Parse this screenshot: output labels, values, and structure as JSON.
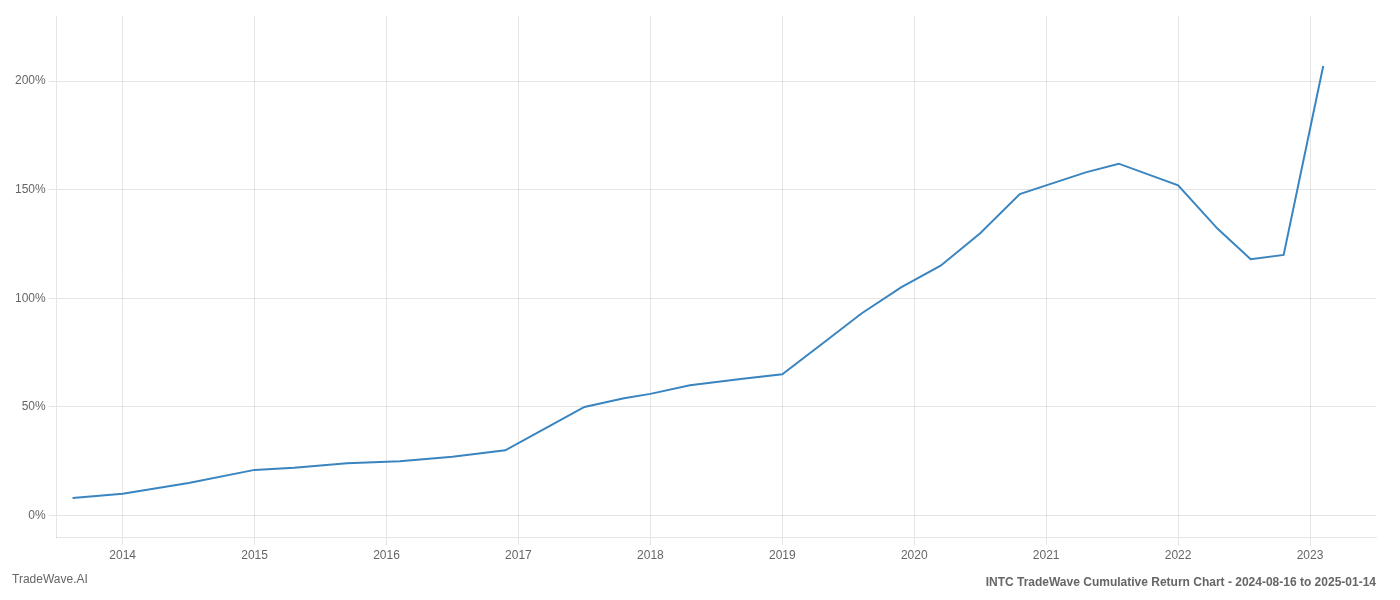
{
  "chart_data": {
    "type": "line",
    "title": "INTC TradeWave Cumulative Return Chart - 2024-08-16 to 2025-01-14",
    "annotations": [
      "TradeWave.AI"
    ],
    "x": [
      2013.62,
      2014.0,
      2014.5,
      2015.0,
      2015.3,
      2015.7,
      2016.1,
      2016.5,
      2016.9,
      2017.2,
      2017.5,
      2017.8,
      2018.0,
      2018.3,
      2018.7,
      2019.0,
      2019.3,
      2019.6,
      2019.9,
      2020.2,
      2020.5,
      2020.8,
      2021.0,
      2021.3,
      2021.55,
      2022.0,
      2022.3,
      2022.55,
      2022.8,
      2023.1
    ],
    "values": [
      8,
      10,
      15,
      21,
      22,
      24,
      25,
      27,
      30,
      40,
      50,
      54,
      56,
      60,
      63,
      65,
      79,
      93,
      105,
      115,
      130,
      148,
      152,
      158,
      162,
      152,
      132,
      118,
      120,
      207
    ],
    "color": "#3a85c0",
    "xlim": [
      2013.5,
      2023.5
    ],
    "xticks": [
      2014,
      2015,
      2016,
      2017,
      2018,
      2019,
      2020,
      2021,
      2022,
      2023
    ],
    "ylim": [
      -10,
      230
    ],
    "yticks": [
      {
        "value": 0,
        "label": "0%"
      },
      {
        "value": 50,
        "label": "50%"
      },
      {
        "value": 100,
        "label": "100%"
      },
      {
        "value": 150,
        "label": "150%"
      },
      {
        "value": 200,
        "label": "200%"
      }
    ],
    "grid": true
  }
}
